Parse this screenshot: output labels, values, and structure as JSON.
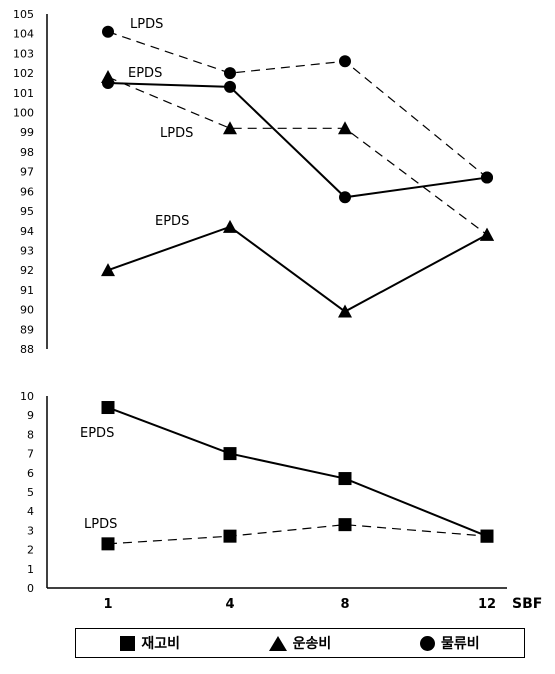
{
  "chart_data": [
    {
      "type": "line",
      "categories": [
        "1",
        "4",
        "8",
        "12"
      ],
      "ylim": [
        88,
        105
      ],
      "yticks": [
        88,
        89,
        90,
        91,
        92,
        93,
        94,
        95,
        96,
        97,
        98,
        99,
        100,
        101,
        102,
        103,
        104,
        105
      ],
      "series": [
        {
          "name": "EPDS",
          "metric": "운송비",
          "marker": "triangle",
          "style": "solid",
          "values": [
            92,
            94.2,
            89.9,
            93.8
          ]
        },
        {
          "name": "LPDS",
          "metric": "운송비",
          "marker": "triangle",
          "style": "dashed",
          "values": [
            101.8,
            99.2,
            99.2,
            93.8
          ]
        },
        {
          "name": "LPDS",
          "metric": "물류비",
          "marker": "circle",
          "style": "dashed",
          "values": [
            104.1,
            102,
            102.6,
            96.7
          ]
        },
        {
          "name": "EPDS",
          "metric": "물류비",
          "marker": "circle",
          "style": "solid",
          "values": [
            101.5,
            101.3,
            95.7,
            96.7
          ]
        }
      ],
      "annotations": [
        "LPDS",
        "EPDS",
        "LPDS",
        "EPDS"
      ]
    },
    {
      "type": "line",
      "categories": [
        "1",
        "4",
        "8",
        "12"
      ],
      "xlabel": "SBF",
      "ylim": [
        0,
        10
      ],
      "yticks": [
        0,
        1,
        2,
        3,
        4,
        5,
        6,
        7,
        8,
        9,
        10
      ],
      "series": [
        {
          "name": "EPDS",
          "metric": "재고비",
          "marker": "square",
          "style": "solid",
          "values": [
            9.4,
            7,
            5.7,
            2.7
          ]
        },
        {
          "name": "LPDS",
          "metric": "재고비",
          "marker": "square",
          "style": "dashed",
          "values": [
            2.3,
            2.7,
            3.3,
            2.7
          ]
        }
      ],
      "annotations": [
        "EPDS",
        "LPDS"
      ]
    }
  ],
  "legend": {
    "items": [
      {
        "label": "재고비",
        "marker": "square"
      },
      {
        "label": "운송비",
        "marker": "triangle"
      },
      {
        "label": "물류비",
        "marker": "circle"
      }
    ]
  }
}
